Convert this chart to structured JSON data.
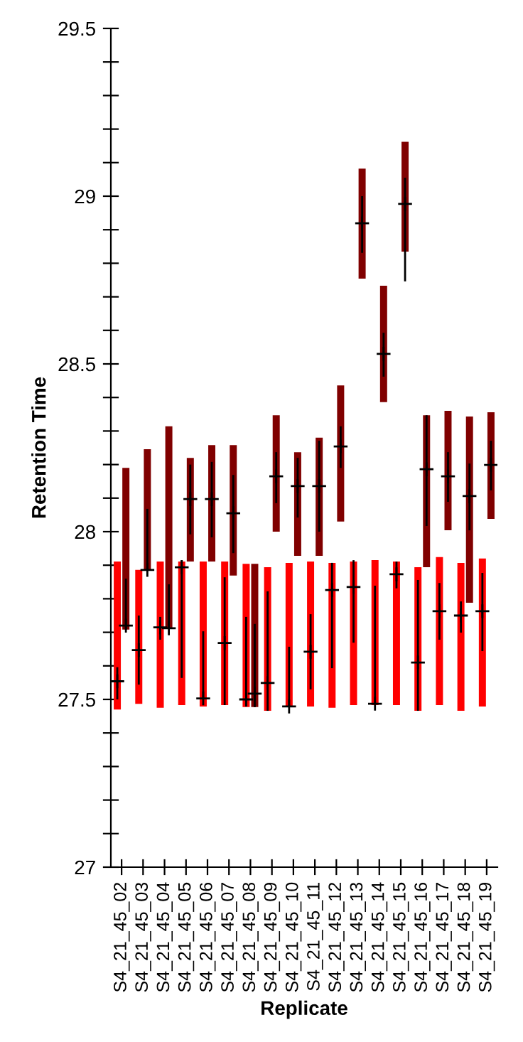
{
  "chart_data": {
    "type": "bar",
    "xlabel": "Replicate",
    "ylabel": "Retention Time",
    "categories": [
      "S4_21_45_02",
      "S4_21_45_03",
      "S4_21_45_04",
      "S4_21_45_05",
      "S4_21_45_06",
      "S4_21_45_07",
      "S4_21_45_08",
      "S4_21_45_09",
      "S4_21_45_10",
      "S4_21_45_11",
      "S4_21_45_12",
      "S4_21_45_13",
      "S4_21_45_14",
      "S4_21_45_15",
      "S4_21_45_16",
      "S4_21_45_17",
      "S4_21_45_18",
      "S4_21_45_19"
    ],
    "series": [
      {
        "color": "#ff0000",
        "base": [
          27.47,
          27.487,
          27.475,
          27.483,
          27.479,
          27.483,
          27.477,
          27.466,
          27.477,
          27.479,
          27.475,
          27.483,
          27.483,
          27.483,
          27.466,
          27.483,
          27.466,
          27.479
        ],
        "values": [
          0.441,
          0.399,
          0.436,
          0.428,
          0.432,
          0.428,
          0.427,
          0.428,
          0.43,
          0.432,
          0.432,
          0.428,
          0.432,
          0.428,
          0.428,
          0.441,
          0.441,
          0.441
        ]
      },
      {
        "color": "#800000",
        "base": [
          27.708,
          27.886,
          27.712,
          27.911,
          27.911,
          27.869,
          27.477,
          28.0,
          27.928,
          27.928,
          28.03,
          28.754,
          28.386,
          28.835,
          27.894,
          28.004,
          27.788,
          28.038
        ],
        "values": [
          0.482,
          0.36,
          0.602,
          0.309,
          0.347,
          0.389,
          0.427,
          0.347,
          0.309,
          0.352,
          0.406,
          0.328,
          0.347,
          0.327,
          0.453,
          0.356,
          0.555,
          0.318
        ]
      },
      {
        "type": "scatter",
        "color": "#000000",
        "values": [
          27.554,
          27.647,
          27.715,
          27.894,
          27.503,
          27.668,
          27.5,
          27.549,
          27.479,
          27.642,
          27.826,
          27.835,
          27.487,
          27.873,
          27.61,
          27.763,
          27.75,
          27.763
        ],
        "errors": [
          [
            27.5,
            27.596
          ],
          [
            27.544,
            27.75
          ],
          [
            27.678,
            27.746
          ],
          [
            27.564,
            27.915
          ],
          [
            27.5,
            27.703
          ],
          [
            27.483,
            27.864
          ],
          [
            27.479,
            27.746
          ],
          [
            27.466,
            27.822
          ],
          [
            27.479,
            27.657
          ],
          [
            27.53,
            27.754
          ],
          [
            27.593,
            27.907
          ],
          [
            27.669,
            27.915
          ],
          [
            27.487,
            27.839
          ],
          [
            27.831,
            27.911
          ],
          [
            27.466,
            27.856
          ],
          [
            27.678,
            27.847
          ],
          [
            27.699,
            27.792
          ],
          [
            27.644,
            27.877
          ]
        ]
      },
      {
        "type": "scatter",
        "color": "#000000",
        "values": [
          27.72,
          27.886,
          27.712,
          28.097,
          28.097,
          28.055,
          27.517,
          28.165,
          28.136,
          28.136,
          28.254,
          28.919,
          28.53,
          28.977,
          28.186,
          28.165,
          28.106,
          28.199
        ],
        "errors": [
          [
            27.708,
            27.86
          ],
          [
            27.886,
            28.068
          ],
          [
            27.712,
            27.843
          ],
          [
            27.992,
            28.2
          ],
          [
            27.983,
            28.208
          ],
          [
            27.936,
            28.169
          ],
          [
            27.477,
            27.725
          ],
          [
            28.085,
            28.237
          ],
          [
            28.042,
            28.22
          ],
          [
            28.0,
            28.271
          ],
          [
            28.19,
            28.314
          ],
          [
            28.831,
            29.0
          ],
          [
            28.462,
            28.593
          ],
          [
            28.746,
            29.055
          ],
          [
            28.017,
            28.347
          ],
          [
            28.089,
            28.237
          ],
          [
            28.004,
            28.203
          ],
          [
            28.123,
            28.271
          ]
        ]
      }
    ],
    "marker": "cross",
    "legend": false,
    "grid": false,
    "ylim": [
      27,
      29.5
    ],
    "yticks": [
      27,
      {
        "value": 27.1,
        "label": null
      },
      {
        "value": 27.2,
        "label": null
      },
      {
        "value": 27.3,
        "label": null
      },
      {
        "value": 27.4,
        "label": null
      },
      27.5,
      {
        "value": 27.6,
        "label": null
      },
      {
        "value": 27.7,
        "label": null
      },
      {
        "value": 27.8,
        "label": null
      },
      {
        "value": 27.9,
        "label": null
      },
      28,
      {
        "value": 28.1,
        "label": null
      },
      {
        "value": 28.2,
        "label": null
      },
      {
        "value": 28.3,
        "label": null
      },
      {
        "value": 28.4,
        "label": null
      },
      28.5,
      {
        "value": 28.6,
        "label": null
      },
      {
        "value": 28.7,
        "label": null
      },
      {
        "value": 28.8,
        "label": null
      },
      {
        "value": 28.9,
        "label": null
      },
      29,
      {
        "value": 29.1,
        "label": null
      },
      {
        "value": 29.2,
        "label": null
      },
      {
        "value": 29.3,
        "label": null
      },
      {
        "value": 29.4,
        "label": null
      },
      29.5
    ]
  }
}
